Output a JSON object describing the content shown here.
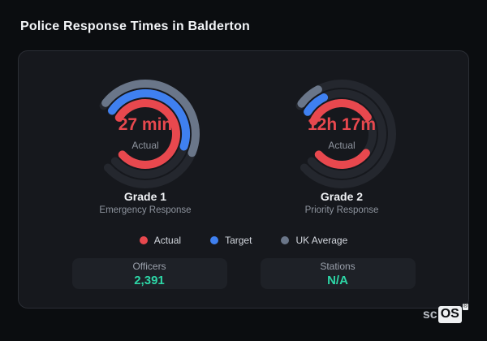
{
  "title": "Police Response Times in Balderton",
  "legend": {
    "items": [
      {
        "label": "Actual",
        "color": "#e8484e"
      },
      {
        "label": "Target",
        "color": "#3f80f0"
      },
      {
        "label": "UK Average",
        "color": "#6a7689"
      }
    ]
  },
  "stats": [
    {
      "label": "Officers",
      "value": "2,391"
    },
    {
      "label": "Stations",
      "value": "N/A"
    }
  ],
  "logo": {
    "prefix": "sc",
    "suffix": "OS",
    "reg": "®"
  },
  "chart_data": {
    "type": "gauge",
    "title": "Police Response Times in Balderton",
    "legend_position": "bottom-center",
    "colors": {
      "track": "#24272e",
      "value_text": "#e8484e"
    },
    "gauges": [
      {
        "id": "grade1",
        "label": "Grade 1",
        "sublabel": "Emergency Response",
        "value": "27 min",
        "value_label": "Actual",
        "dial": {
          "start": 304,
          "sweep": 284
        },
        "rings": [
          {
            "series": "UK Average",
            "color": "#6a7689",
            "radius": 62,
            "arcs": [
              {
                "start": 308,
                "sweep": 164
              }
            ]
          },
          {
            "series": "Target",
            "color": "#3f80f0",
            "radius": 50,
            "arcs": [
              {
                "start": 305,
                "sweep": 163
              }
            ]
          },
          {
            "series": "Actual",
            "color": "#e8484e",
            "radius": 38,
            "arcs": [
              {
                "start": 302,
                "sweep": 286
              }
            ]
          }
        ]
      },
      {
        "id": "grade2",
        "label": "Grade 2",
        "sublabel": "Priority Response",
        "value": "12h 17m",
        "value_label": "Actual",
        "dial": {
          "start": 304,
          "sweep": 284
        },
        "rings": [
          {
            "series": "UK Average",
            "color": "#6a7689",
            "radius": 62,
            "arcs": [
              {
                "start": 307,
                "sweep": 25
              }
            ]
          },
          {
            "series": "Target",
            "color": "#3f80f0",
            "radius": 50,
            "arcs": [
              {
                "start": 303,
                "sweep": 31
              }
            ]
          },
          {
            "series": "Actual",
            "color": "#e8484e",
            "radius": 38,
            "arcs": [
              {
                "start": 294,
                "sweep": 123
              },
              {
                "start": 128,
                "sweep": 100
              }
            ]
          }
        ]
      }
    ]
  }
}
